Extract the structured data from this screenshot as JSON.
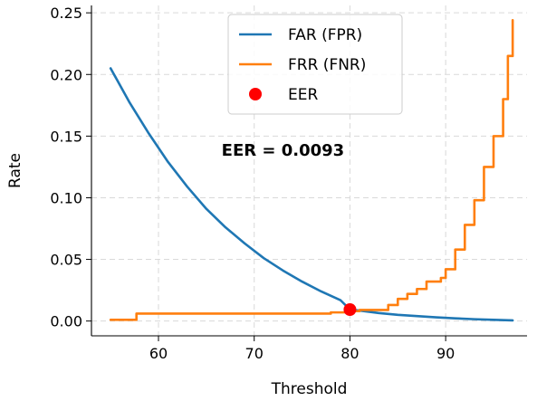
{
  "chart_data": {
    "type": "line",
    "xlabel": "Threshold",
    "ylabel": "Rate",
    "xlim": [
      53,
      98.5
    ],
    "ylim": [
      -0.012,
      0.256
    ],
    "xticks": [
      60,
      70,
      80,
      90
    ],
    "yticks": [
      0.0,
      0.05,
      0.1,
      0.15,
      0.2,
      0.25
    ],
    "ytick_labels": [
      "0.00",
      "0.05",
      "0.10",
      "0.15",
      "0.20",
      "0.25"
    ],
    "grid": true,
    "legend_position": "upper-center",
    "series": [
      {
        "name": "FAR (FPR)",
        "color": "#1f77b4",
        "x": [
          55,
          57,
          59,
          61,
          63,
          65,
          67,
          69,
          71,
          73,
          75,
          77,
          79,
          80,
          81,
          83,
          85,
          87,
          89,
          91,
          93,
          95,
          97
        ],
        "y": [
          0.205,
          0.177,
          0.152,
          0.129,
          0.109,
          0.091,
          0.076,
          0.063,
          0.051,
          0.041,
          0.032,
          0.024,
          0.017,
          0.0093,
          0.0085,
          0.0065,
          0.005,
          0.004,
          0.003,
          0.0022,
          0.0015,
          0.001,
          0.0005
        ]
      },
      {
        "name": "FRR (FNR)",
        "color": "#ff7f0e",
        "x": [
          55,
          57.5,
          57.7,
          58,
          76,
          77,
          78,
          79,
          80,
          81,
          83.5,
          84,
          85,
          86,
          87,
          88,
          88.5,
          89.5,
          90,
          91,
          92,
          93,
          94,
          95,
          96,
          96.5,
          97
        ],
        "y": [
          0.001,
          0.001,
          0.006,
          0.006,
          0.006,
          0.006,
          0.007,
          0.007,
          0.008,
          0.009,
          0.009,
          0.013,
          0.018,
          0.022,
          0.026,
          0.032,
          0.032,
          0.035,
          0.042,
          0.058,
          0.078,
          0.098,
          0.125,
          0.15,
          0.18,
          0.215,
          0.244
        ]
      }
    ],
    "eer_point": {
      "name": "EER",
      "x": 80,
      "y": 0.0093,
      "color": "#ff0000"
    },
    "annotation": {
      "text": "EER = 0.0093",
      "x": 73,
      "y": 0.134
    }
  }
}
